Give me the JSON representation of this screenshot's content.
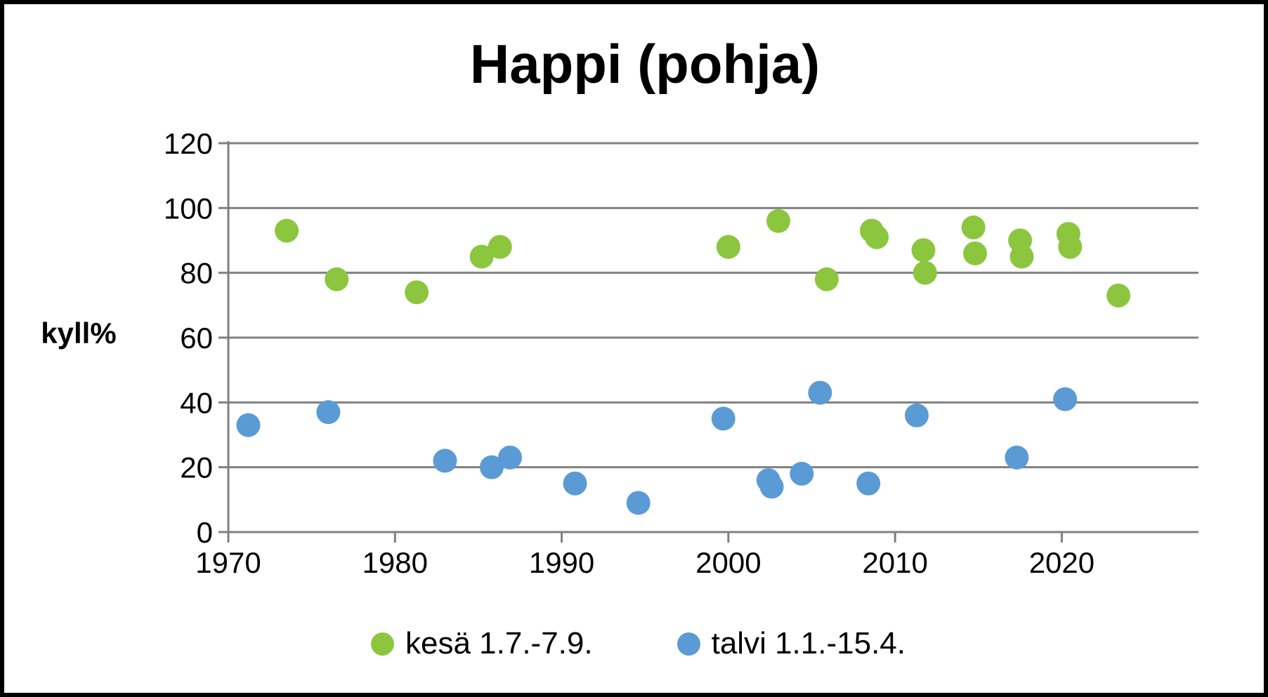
{
  "chart_data": {
    "type": "scatter",
    "title": "Happi (pohja)",
    "ylabel": "kyll%",
    "xlabel": "",
    "xlim": [
      1970,
      2028.2
    ],
    "ylim": [
      0,
      120
    ],
    "x_ticks": [
      "1970",
      "1980",
      "1990",
      "2000",
      "2010",
      "2020"
    ],
    "x_tick_values": [
      1970,
      1980,
      1990,
      2000,
      2010,
      2020
    ],
    "y_ticks": [
      "0",
      "20",
      "40",
      "60",
      "80",
      "100",
      "120"
    ],
    "y_tick_values": [
      0,
      20,
      40,
      60,
      80,
      100,
      120
    ],
    "grid": "horizontal",
    "legend_position": "bottom-center",
    "colors": {
      "grid": "#808080",
      "axis": "#808080",
      "text": "#000000",
      "summer": "#8CC63F",
      "winter": "#5B9BD5"
    },
    "series": [
      {
        "name": "kesä 1.7.-7.9.",
        "color": "#8CC63F",
        "points": [
          [
            1973.5,
            93
          ],
          [
            1976.5,
            78
          ],
          [
            1981.3,
            74
          ],
          [
            1985.2,
            85
          ],
          [
            1986.3,
            88
          ],
          [
            2000.0,
            88
          ],
          [
            2003.0,
            96
          ],
          [
            2005.9,
            78
          ],
          [
            2008.6,
            93
          ],
          [
            2008.9,
            91
          ],
          [
            2011.7,
            87
          ],
          [
            2011.8,
            80
          ],
          [
            2014.7,
            94
          ],
          [
            2014.8,
            86
          ],
          [
            2017.5,
            90
          ],
          [
            2017.6,
            85
          ],
          [
            2020.4,
            92
          ],
          [
            2020.5,
            88
          ],
          [
            2023.4,
            73
          ]
        ]
      },
      {
        "name": "talvi 1.1.-15.4.",
        "color": "#5B9BD5",
        "points": [
          [
            1971.2,
            33
          ],
          [
            1976.0,
            37
          ],
          [
            1983.0,
            22
          ],
          [
            1985.8,
            20
          ],
          [
            1986.9,
            23
          ],
          [
            1990.8,
            15
          ],
          [
            1994.6,
            9
          ],
          [
            1999.7,
            35
          ],
          [
            2002.4,
            16
          ],
          [
            2002.6,
            14
          ],
          [
            2004.4,
            18
          ],
          [
            2005.5,
            43
          ],
          [
            2008.4,
            15
          ],
          [
            2011.3,
            36
          ],
          [
            2017.3,
            23
          ],
          [
            2020.2,
            41
          ]
        ]
      }
    ]
  }
}
